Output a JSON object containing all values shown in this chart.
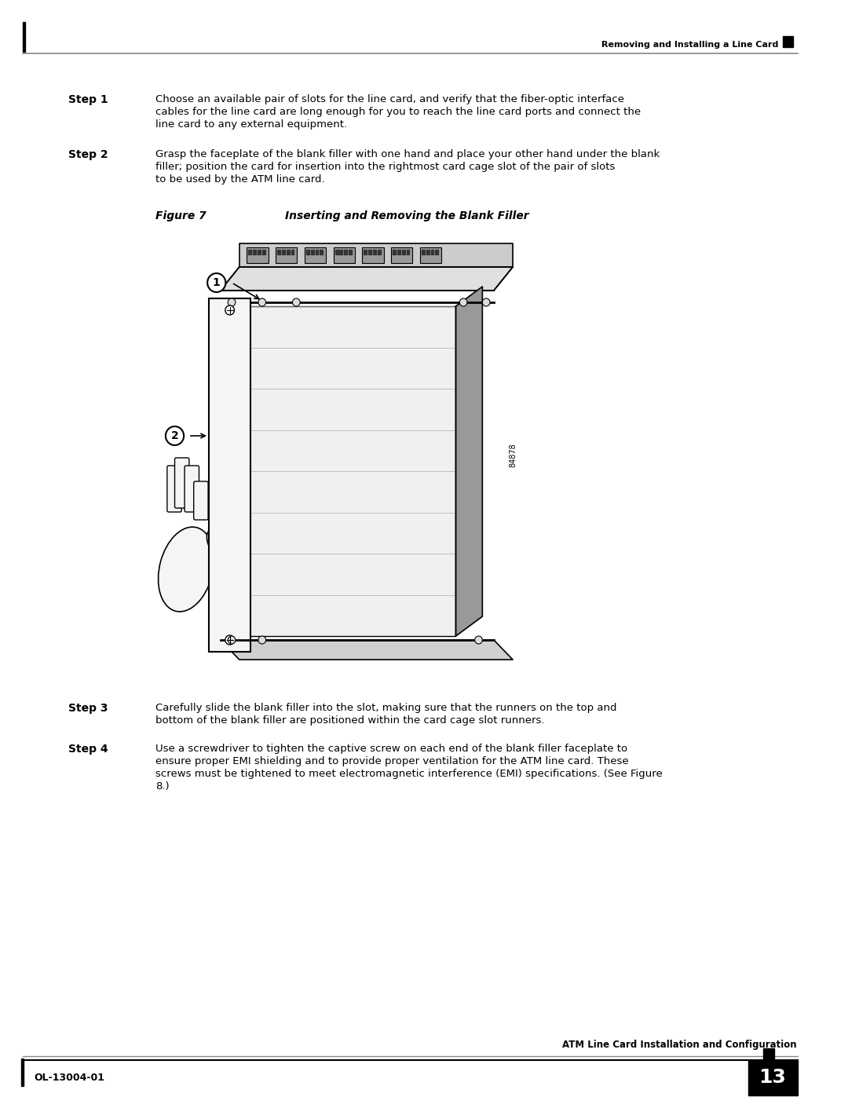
{
  "bg_color": "#ffffff",
  "top_header_line_color": "#888888",
  "top_right_text": "Removing and Installing a Line Card",
  "top_left_marker": true,
  "bottom_left_text": "OL-13004-01",
  "bottom_right_number": "13",
  "bottom_center_text": "ATM Line Card Installation and Configuration",
  "step1_label": "Step 1",
  "step1_text": "Choose an available pair of slots for the line card, and verify that the fiber-optic interface cables for the line card are long enough for you to reach the line card ports and connect the line card to any external equipment.",
  "step2_label": "Step 2",
  "step2_text": "Grasp the faceplate of the blank filler with one hand and place your other hand under the blank filler; position the card for insertion into the rightmost card cage slot of the pair of slots to be used by the ATM line card.",
  "figure_label": "Figure 7",
  "figure_title": "Inserting and Removing the Blank Filler",
  "step3_label": "Step 3",
  "step3_text": "Carefully slide the blank filler into the slot, making sure that the runners on the top and bottom of the blank filler are positioned within the card cage slot runners.",
  "step4_label": "Step 4",
  "step4_text": "Use a screwdriver to tighten the captive screw on each end of the blank filler faceplate to ensure proper EMI shielding and to provide proper ventilation for the ATM line card. These screws must be tightened to meet electromagnetic interference (EMI) specifications. (See Figure 8.)",
  "figure8_link": "Figure 8"
}
